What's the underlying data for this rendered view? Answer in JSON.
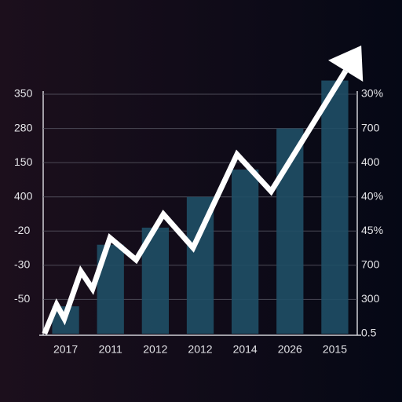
{
  "chart_data": {
    "type": "bar",
    "categories": [
      "2017",
      "2011",
      "2012",
      "2012",
      "2014",
      "2026",
      "2015"
    ],
    "xlim": [
      0,
      7
    ],
    "ylim": [
      0,
      7
    ],
    "yticks": [
      {
        "value": 7,
        "label": "350"
      },
      {
        "value": 6,
        "label": "280"
      },
      {
        "value": 5,
        "label": "150"
      },
      {
        "value": 4,
        "label": "400"
      },
      {
        "value": 3,
        "label": "-20"
      },
      {
        "value": 2,
        "label": "-30"
      },
      {
        "value": 1,
        "label": "-50"
      }
    ],
    "y2lim": [
      0,
      7
    ],
    "y2ticks": [
      {
        "value": 7,
        "label": "30%"
      },
      {
        "value": 6,
        "label": "700"
      },
      {
        "value": 5,
        "label": "400"
      },
      {
        "value": 4,
        "label": "40%"
      },
      {
        "value": 3,
        "label": "45%"
      },
      {
        "value": 2,
        "label": "700"
      },
      {
        "value": 1,
        "label": "300"
      },
      {
        "value": 0,
        "label": "0.5"
      }
    ],
    "grid": true,
    "series": [
      {
        "type": "bar",
        "color": "#1f4f66",
        "values": [
          0.8,
          2.6,
          3.1,
          4.0,
          4.8,
          6.0,
          7.4
        ]
      },
      {
        "type": "line",
        "color": "#ffffff",
        "x": [
          0.03,
          0.3,
          0.47,
          0.84,
          1.1,
          1.49,
          2.07,
          2.68,
          3.34,
          4.32,
          5.08,
          6.74
        ],
        "values": [
          0,
          0.85,
          0.44,
          1.82,
          1.31,
          2.8,
          2.16,
          3.49,
          2.51,
          5.24,
          4.16,
          7.68
        ]
      }
    ]
  }
}
